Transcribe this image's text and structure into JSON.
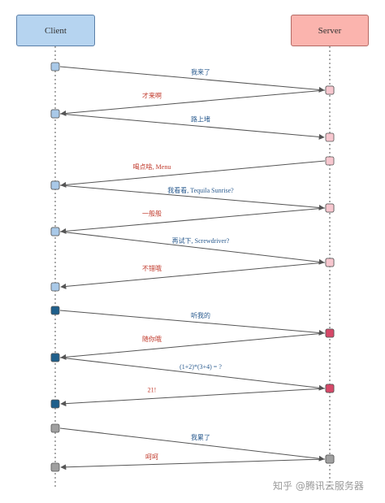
{
  "participants": {
    "client": "Client",
    "server": "Server"
  },
  "watermark": "知乎 @腾讯云服务器",
  "colors": {
    "client_light": "#a9c9e8",
    "client_dark": "#1f5f8b",
    "server_light": "#f7c7cf",
    "server_dark": "#d64868",
    "gray": "#a0a0a0",
    "label_blue": "#2a5b8f",
    "label_red": "#c0392b"
  },
  "messages": [
    {
      "dir": "c2s",
      "label": "我来了",
      "label_color": "label_blue",
      "from_color": "client_light",
      "to_color": "server_light"
    },
    {
      "dir": "s2c",
      "label": "才来啊",
      "label_color": "label_red",
      "from_color": "server_light",
      "to_color": "client_light"
    },
    {
      "dir": "c2s",
      "label": "路上堵",
      "label_color": "label_blue",
      "from_color": "client_light",
      "to_color": "server_light"
    },
    {
      "dir": "s2c",
      "label": "喝点啥, Menu",
      "label_color": "label_red",
      "from_color": "server_light",
      "to_color": "client_light"
    },
    {
      "dir": "c2s",
      "label": "我看看, Tequila Sunrise?",
      "label_color": "label_blue",
      "from_color": "client_light",
      "to_color": "server_light"
    },
    {
      "dir": "s2c",
      "label": "一般般",
      "label_color": "label_red",
      "from_color": "server_light",
      "to_color": "client_light"
    },
    {
      "dir": "c2s",
      "label": "再试下, Screwdriver?",
      "label_color": "label_blue",
      "from_color": "client_light",
      "to_color": "server_light"
    },
    {
      "dir": "s2c",
      "label": "不错哦",
      "label_color": "label_red",
      "from_color": "server_light",
      "to_color": "client_light"
    },
    {
      "dir": "c2s",
      "label": "听我的",
      "label_color": "label_blue",
      "from_color": "client_dark",
      "to_color": "server_dark"
    },
    {
      "dir": "s2c",
      "label": "随你哦",
      "label_color": "label_red",
      "from_color": "server_dark",
      "to_color": "client_dark"
    },
    {
      "dir": "c2s",
      "label": "(1+2)*(3+4) = ?",
      "label_color": "label_blue",
      "from_color": "client_dark",
      "to_color": "server_dark"
    },
    {
      "dir": "s2c",
      "label": "21!",
      "label_color": "label_red",
      "from_color": "server_dark",
      "to_color": "client_dark"
    },
    {
      "dir": "c2s",
      "label": "我累了",
      "label_color": "label_blue",
      "from_color": "gray",
      "to_color": "gray"
    },
    {
      "dir": "s2c",
      "label": "呵呵",
      "label_color": "label_red",
      "from_color": "gray",
      "to_color": "gray"
    }
  ]
}
